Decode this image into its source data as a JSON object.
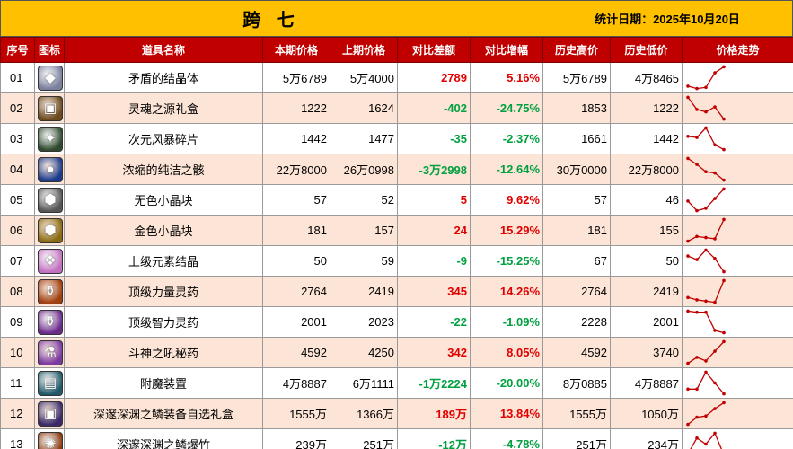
{
  "title": "跨 七",
  "date_label": "统计日期：2025年10月20日",
  "headers": [
    "序号",
    "图标",
    "道具名称",
    "本期价格",
    "上期价格",
    "对比差额",
    "对比增幅",
    "历史高价",
    "历史低价",
    "价格走势"
  ],
  "colors": {
    "title_bg": "#FFC000",
    "header_bg": "#C00000",
    "alt_row_bg": "#FCE4D6",
    "up_color": "#E00000",
    "down_color": "#00A040",
    "trend_color": "#C00000"
  },
  "rows": [
    {
      "idx": "01",
      "icon": "crystal-icon",
      "icon_bg": "#7a7f9c",
      "glyph": "◆",
      "name": "矛盾的结晶体",
      "current": "5万6789",
      "previous": "5万4000",
      "diff": "2789",
      "pct": "5.16%",
      "dir": "up",
      "high": "5万6789",
      "low": "4万8465",
      "trend": [
        0.15,
        0.05,
        0.1,
        0.7,
        0.95
      ]
    },
    {
      "idx": "02",
      "icon": "gift-box-icon",
      "icon_bg": "#6b4a1e",
      "glyph": "▣",
      "name": "灵魂之源礼盒",
      "current": "1222",
      "previous": "1624",
      "diff": "-402",
      "pct": "-24.75%",
      "dir": "down",
      "high": "1853",
      "low": "1222",
      "trend": [
        0.95,
        0.45,
        0.35,
        0.55,
        0.05
      ]
    },
    {
      "idx": "03",
      "icon": "shard-icon",
      "icon_bg": "#2e4a2e",
      "glyph": "✦",
      "name": "次元风暴碎片",
      "current": "1442",
      "previous": "1477",
      "diff": "-35",
      "pct": "-2.37%",
      "dir": "down",
      "high": "1661",
      "low": "1442",
      "trend": [
        0.6,
        0.55,
        0.95,
        0.25,
        0.05
      ]
    },
    {
      "idx": "04",
      "icon": "orb-icon",
      "icon_bg": "#1a3a8a",
      "glyph": "●",
      "name": "浓缩的纯洁之骸",
      "current": "22万8000",
      "previous": "26万0998",
      "diff": "-3万2998",
      "pct": "-12.64%",
      "dir": "down",
      "high": "30万0000",
      "low": "22万8000",
      "trend": [
        0.95,
        0.7,
        0.4,
        0.35,
        0.05
      ]
    },
    {
      "idx": "05",
      "icon": "gray-cube-icon",
      "icon_bg": "#555555",
      "glyph": "⬢",
      "name": "无色小晶块",
      "current": "57",
      "previous": "52",
      "diff": "5",
      "pct": "9.62%",
      "dir": "up",
      "high": "57",
      "low": "46",
      "trend": [
        0.45,
        0.05,
        0.15,
        0.55,
        0.95
      ]
    },
    {
      "idx": "06",
      "icon": "gold-cube-icon",
      "icon_bg": "#8a6a10",
      "glyph": "⬢",
      "name": "金色小晶块",
      "current": "181",
      "previous": "157",
      "diff": "24",
      "pct": "15.29%",
      "dir": "up",
      "high": "181",
      "low": "155",
      "trend": [
        0.05,
        0.25,
        0.2,
        0.15,
        0.95
      ]
    },
    {
      "idx": "07",
      "icon": "pink-crystal-icon",
      "icon_bg": "#c070c0",
      "glyph": "❖",
      "name": "上级元素结晶",
      "current": "50",
      "previous": "59",
      "diff": "-9",
      "pct": "-15.25%",
      "dir": "down",
      "high": "67",
      "low": "50",
      "trend": [
        0.7,
        0.55,
        0.95,
        0.6,
        0.05
      ]
    },
    {
      "idx": "08",
      "icon": "strength-potion-icon",
      "icon_bg": "#a04010",
      "glyph": "⚱",
      "name": "顶级力量灵药",
      "current": "2764",
      "previous": "2419",
      "diff": "345",
      "pct": "14.26%",
      "dir": "up",
      "high": "2764",
      "low": "2419",
      "trend": [
        0.25,
        0.15,
        0.1,
        0.05,
        0.95
      ]
    },
    {
      "idx": "09",
      "icon": "intel-potion-icon",
      "icon_bg": "#6a2a8a",
      "glyph": "⚱",
      "name": "顶级智力灵药",
      "current": "2001",
      "previous": "2023",
      "diff": "-22",
      "pct": "-1.09%",
      "dir": "down",
      "high": "2228",
      "low": "2001",
      "trend": [
        0.95,
        0.9,
        0.9,
        0.15,
        0.05
      ]
    },
    {
      "idx": "10",
      "icon": "secret-potion-icon",
      "icon_bg": "#7a3aa0",
      "glyph": "⚗",
      "name": "斗神之吼秘药",
      "current": "4592",
      "previous": "4250",
      "diff": "342",
      "pct": "8.05%",
      "dir": "up",
      "high": "4592",
      "low": "3740",
      "trend": [
        0.05,
        0.3,
        0.15,
        0.55,
        0.95
      ]
    },
    {
      "idx": "11",
      "icon": "enchant-device-icon",
      "icon_bg": "#205a6a",
      "glyph": "▤",
      "name": "附魔装置",
      "current": "4万8887",
      "previous": "6万1111",
      "diff": "-1万2224",
      "pct": "-20.00%",
      "dir": "down",
      "high": "8万0885",
      "low": "4万8887",
      "trend": [
        0.25,
        0.25,
        0.95,
        0.5,
        0.05
      ]
    },
    {
      "idx": "12",
      "icon": "abyss-gift-icon",
      "icon_bg": "#3a2a6a",
      "glyph": "▣",
      "name": "深邃深渊之鳞装备自选礼盒",
      "current": "1555万",
      "previous": "1366万",
      "diff": "189万",
      "pct": "13.84%",
      "dir": "up",
      "high": "1555万",
      "low": "1050万",
      "trend": [
        0.05,
        0.35,
        0.4,
        0.7,
        0.95
      ]
    },
    {
      "idx": "13",
      "icon": "firework-icon",
      "icon_bg": "#8a3a10",
      "glyph": "✺",
      "name": "深邃深渊之鳞爆竹",
      "current": "239万",
      "previous": "251万",
      "diff": "-12万",
      "pct": "-4.78%",
      "dir": "down",
      "high": "251万",
      "low": "234万",
      "trend": [
        0.1,
        0.75,
        0.5,
        0.95,
        0.05
      ]
    }
  ]
}
